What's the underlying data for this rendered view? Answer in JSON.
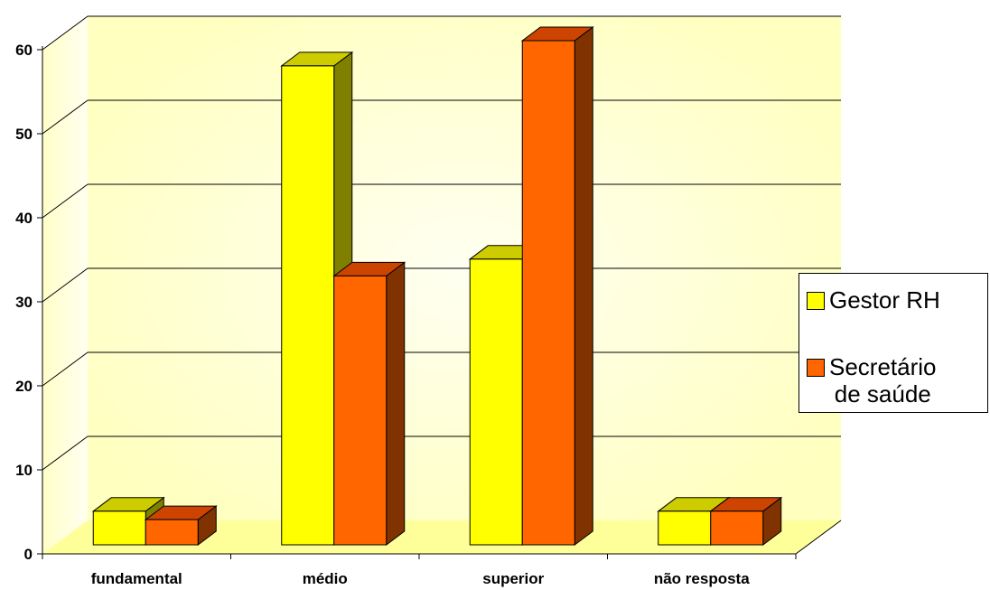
{
  "chart_data": {
    "type": "bar",
    "categories": [
      "fundamental",
      "médio",
      "superior",
      "não resposta"
    ],
    "series": [
      {
        "name": "Gestor RH",
        "values": [
          4,
          57,
          34,
          4
        ],
        "color": "#FFFF00",
        "top_color": "#CCCC00",
        "side_color": "#808000"
      },
      {
        "name": "Secretário de saúde",
        "name_lines": [
          "Secretário",
          "de saúde"
        ],
        "values": [
          3,
          32,
          60,
          4
        ],
        "color": "#FF6600",
        "top_color": "#CC4400",
        "side_color": "#803300"
      }
    ],
    "y_ticks": [
      "0",
      "10",
      "20",
      "30",
      "40",
      "50",
      "60"
    ],
    "ylim": [
      0,
      60
    ],
    "grid": true,
    "legend_position": "right",
    "title": "",
    "xlabel": "",
    "ylabel": "",
    "colors": {
      "wall_light": "#FFFFF0",
      "wall_dark": "#FFFFC0",
      "floor": "#FFFF99",
      "gridline": "#000000"
    }
  }
}
